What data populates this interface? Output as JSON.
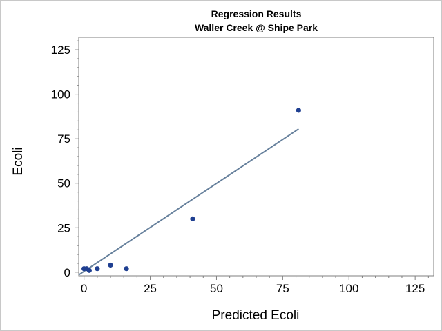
{
  "chart_data": {
    "type": "scatter",
    "title": "Regression Results",
    "subtitle": "Waller Creek @ Shipe Park",
    "xlabel": "Predicted Ecoli",
    "ylabel": "Ecoli",
    "xlim": [
      -2,
      132
    ],
    "ylim": [
      -2,
      132
    ],
    "xticks": [
      0,
      25,
      50,
      75,
      100,
      125
    ],
    "yticks": [
      0,
      25,
      50,
      75,
      100,
      125
    ],
    "grid": false,
    "legend": "none",
    "points": [
      {
        "x": 0,
        "y": 2
      },
      {
        "x": 1,
        "y": 2
      },
      {
        "x": 2,
        "y": 1
      },
      {
        "x": 5,
        "y": 2
      },
      {
        "x": 10,
        "y": 4
      },
      {
        "x": 16,
        "y": 2
      },
      {
        "x": 41,
        "y": 30
      },
      {
        "x": 81,
        "y": 91
      }
    ],
    "fit_line": {
      "x": [
        -2,
        81
      ],
      "y": [
        -1.5,
        80.5
      ]
    },
    "colors": {
      "points": "#1f3f91",
      "fit_line": "#66809c",
      "axis": "#7f7f7f"
    }
  }
}
